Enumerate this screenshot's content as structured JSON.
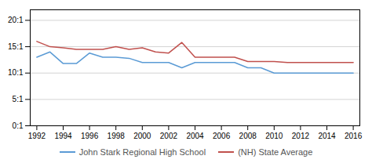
{
  "chart_data": {
    "type": "line",
    "x": [
      1992,
      1993,
      1994,
      1995,
      1996,
      1997,
      1998,
      1999,
      2000,
      2001,
      2002,
      2003,
      2004,
      2005,
      2006,
      2007,
      2008,
      2009,
      2010,
      2011,
      2012,
      2013,
      2014,
      2015,
      2016
    ],
    "series": [
      {
        "name": "John Stark Regional High School",
        "color": "#5b9bd5",
        "values": [
          13.0,
          14.0,
          11.8,
          11.8,
          13.8,
          13.0,
          13.0,
          12.8,
          12.0,
          12.0,
          12.0,
          11.0,
          12.0,
          12.0,
          12.0,
          12.0,
          11.0,
          11.0,
          10.0,
          10.0,
          10.0,
          10.0,
          10.0,
          10.0,
          10.0
        ]
      },
      {
        "name": "(NH) State Average",
        "color": "#c0504d",
        "values": [
          16.0,
          15.0,
          14.8,
          14.5,
          14.5,
          14.5,
          15.0,
          14.5,
          14.8,
          14.0,
          13.8,
          15.8,
          13.0,
          13.0,
          13.0,
          13.0,
          12.2,
          12.2,
          12.2,
          12.0,
          12.0,
          12.0,
          12.0,
          12.0,
          12.0
        ]
      }
    ],
    "xlim": [
      1991.5,
      2016.5
    ],
    "xticks": [
      1992,
      1994,
      1996,
      1998,
      2000,
      2002,
      2004,
      2006,
      2008,
      2010,
      2012,
      2014,
      2016
    ],
    "ylim": [
      0,
      22
    ],
    "yticks": [
      {
        "value": 0,
        "label": "0:1"
      },
      {
        "value": 5,
        "label": "5:1"
      },
      {
        "value": 10,
        "label": "10:1"
      },
      {
        "value": 15,
        "label": "15:1"
      },
      {
        "value": 20,
        "label": "20:1"
      }
    ],
    "grid": true,
    "legend": "bottom"
  }
}
